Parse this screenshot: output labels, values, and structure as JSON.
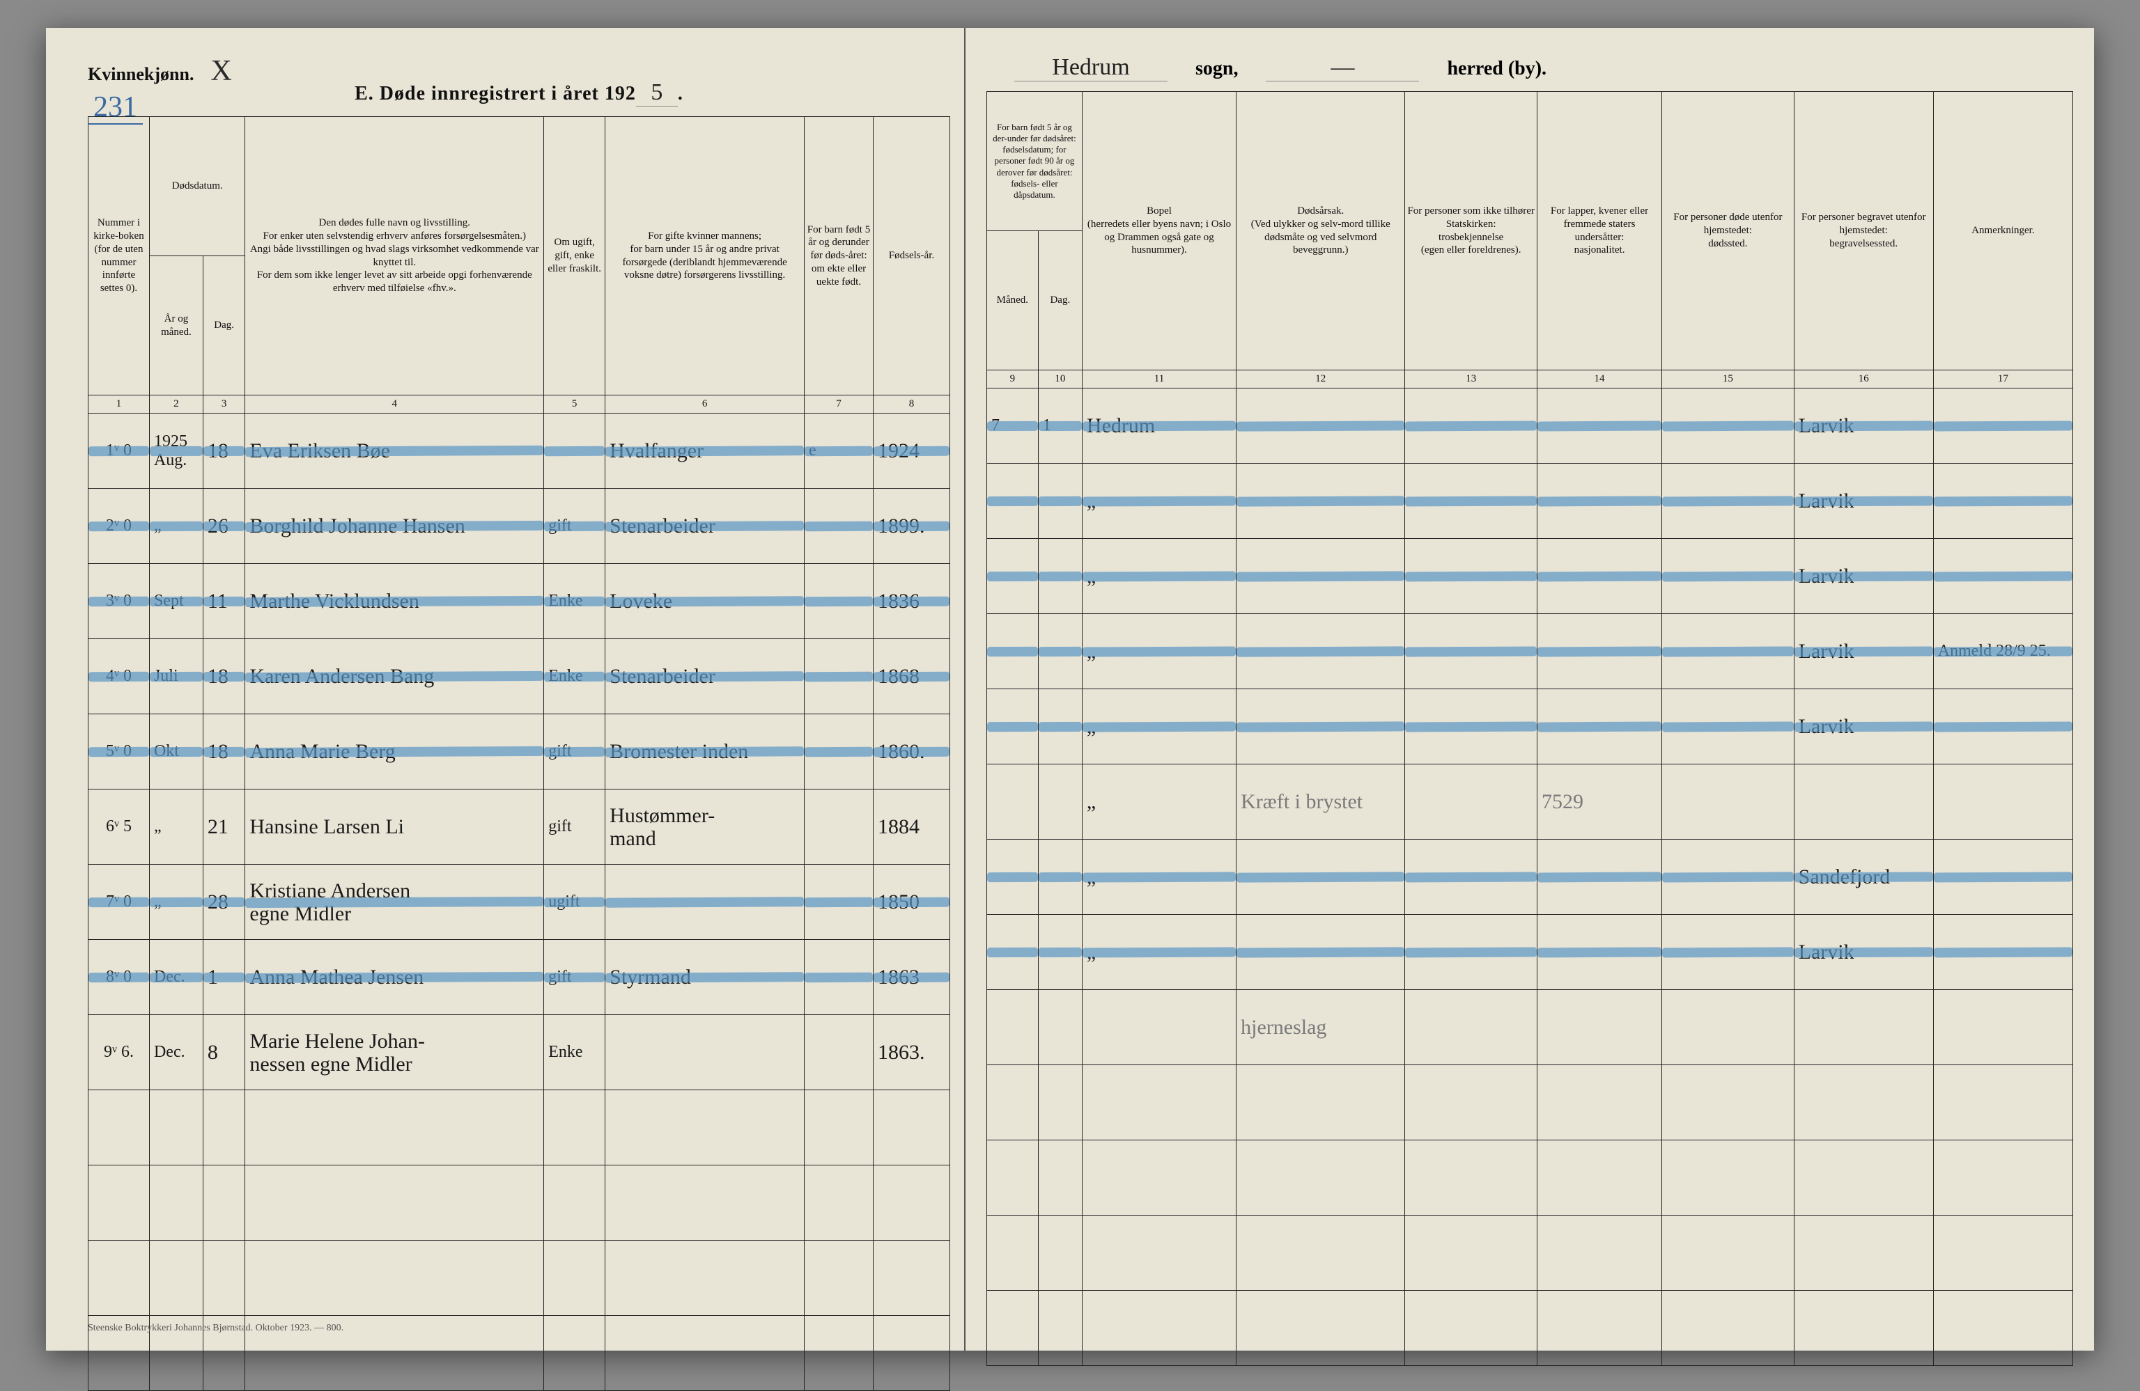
{
  "meta": {
    "gender_label": "Kvinnekjønn.",
    "gender_mark": "X",
    "page_number": "231",
    "form_title_prefix": "E.   Døde innregistrert i året 192",
    "year_digit": "5",
    "sogn_value": "Hedrum",
    "sogn_label": "sogn,",
    "herred_value": "—",
    "herred_label": "herred (by).",
    "footer": "Steenske Boktrykkeri Johannes Bjørnstad.  Oktober 1923. — 800."
  },
  "headers_left": {
    "c1": "Nummer i kirke-boken (for de uten nummer innførte settes 0).",
    "c2_top": "Dødsdatum.",
    "c2a": "År og måned.",
    "c2b": "Dag.",
    "c4": "Den dødes fulle navn og livsstilling.\nFor enker uten selvstendig erhverv anføres forsørgelsesmåten.)\nAngi både livsstillingen og hvad slags virksomhet vedkommende var knyttet til.\nFor dem som ikke lenger levet av sitt arbeide opgi forhenværende erhverv med tilføielse «fhv.».",
    "c5": "Om ugift, gift, enke eller fraskilt.",
    "c6": "For gifte kvinner mannens;\nfor barn under 15 år og andre privat forsørgede (deriblandt hjemmeværende voksne døtre) forsørgerens livsstilling.",
    "c7": "For barn født 5 år og derunder før døds-året: om ekte eller uekte født.",
    "c8": "Fødsels-år."
  },
  "headers_right": {
    "c9_top": "For barn født 5 år og der-under før dødsåret: fødselsdatum; for personer født 90 år og derover før dødsåret: fødsels- eller dåpsdatum.",
    "c9a": "Måned.",
    "c9b": "Dag.",
    "c11": "Bopel\n(herredets eller byens navn; i Oslo og Drammen også gate og husnummer).",
    "c12": "Dødsårsak.\n(Ved ulykker og selv-mord tillike dødsmåte og ved selvmord beveggrunn.)",
    "c13": "For personer som ikke tilhører Statskirken:\ntrosbekjennelse\n(egen eller foreldrenes).",
    "c14": "For lapper, kvener eller fremmede staters undersåtter:\nnasjonalitet.",
    "c15": "For personer døde utenfor hjemstedet:\ndødssted.",
    "c16": "For personer begravet utenfor hjemstedet:\nbegravelsessted.",
    "c17": "Anmerkninger."
  },
  "colnums_left": [
    "1",
    "2",
    "3",
    "4",
    "5",
    "6",
    "7",
    "8"
  ],
  "colnums_right": [
    "9",
    "10",
    "11",
    "12",
    "13",
    "14",
    "15",
    "16",
    "17"
  ],
  "rows": [
    {
      "strike": true,
      "num": "1ᵛ 0",
      "year_month": "1925\nAug.",
      "day": "18",
      "name": "Eva Eriksen   Bøe",
      "status": "",
      "provider": "Hvalfanger",
      "ekte": "e",
      "birth": "1924",
      "bmonth": "7",
      "bday": "1",
      "bopel": "Hedrum",
      "cause": "",
      "c13": "",
      "c14": "",
      "c15": "",
      "burial": "Larvik",
      "note": ""
    },
    {
      "strike": true,
      "num": "2ᵛ 0",
      "year_month": "„",
      "day": "26",
      "name": "Borghild Johanne Hansen",
      "status": "gift",
      "provider": "Stenarbeider",
      "ekte": "",
      "birth": "1899.",
      "bmonth": "",
      "bday": "",
      "bopel": "„",
      "cause": "",
      "c13": "",
      "c14": "",
      "c15": "",
      "burial": "Larvik",
      "note": ""
    },
    {
      "strike": true,
      "num": "3ᵛ 0",
      "year_month": "Sept",
      "day": "11",
      "name": "Marthe Vicklundsen",
      "status": "Enke",
      "provider": "Loveke",
      "ekte": "",
      "birth": "1836",
      "bmonth": "",
      "bday": "",
      "bopel": "„",
      "cause": "",
      "c13": "",
      "c14": "",
      "c15": "",
      "burial": "Larvik",
      "note": ""
    },
    {
      "strike": true,
      "num": "4ᵛ 0",
      "year_month": "Juli",
      "day": "18",
      "name": "Karen Andersen Bang",
      "status": "Enke",
      "provider": "Stenarbeider",
      "ekte": "",
      "birth": "1868",
      "bmonth": "",
      "bday": "",
      "bopel": "„",
      "cause": "",
      "c13": "",
      "c14": "",
      "c15": "",
      "burial": "Larvik",
      "note": "Anmeld 28/9 25."
    },
    {
      "strike": true,
      "num": "5ᵛ 0",
      "year_month": "Okt",
      "day": "18",
      "name": "Anna Marie Berg",
      "status": "gift",
      "provider": "Bromester inden",
      "ekte": "",
      "birth": "1860.",
      "bmonth": "",
      "bday": "",
      "bopel": "„",
      "cause": "",
      "c13": "",
      "c14": "",
      "c15": "",
      "burial": "Larvik",
      "note": ""
    },
    {
      "strike": false,
      "num": "6ᵛ 5",
      "year_month": "„",
      "day": "21",
      "name": "Hansine Larsen Li",
      "status": "gift",
      "provider": "Hustømmer-\nmand",
      "ekte": "",
      "birth": "1884",
      "bmonth": "",
      "bday": "",
      "bopel": "„",
      "cause": "Kræft i brystet",
      "c13": "",
      "c14": "7529",
      "c15": "",
      "burial": "",
      "note": ""
    },
    {
      "strike": true,
      "num": "7ᵛ 0",
      "year_month": "„",
      "day": "28",
      "name": "Kristiane Andersen\negne Midler",
      "status": "ugift",
      "provider": "",
      "ekte": "",
      "birth": "1850",
      "bmonth": "",
      "bday": "",
      "bopel": "„",
      "cause": "",
      "c13": "",
      "c14": "",
      "c15": "",
      "burial": "Sandefjord",
      "note": ""
    },
    {
      "strike": true,
      "num": "8ᵛ 0",
      "year_month": "Dec.",
      "day": "1",
      "name": "Anna Mathea Jensen",
      "status": "gift",
      "provider": "Styrmand",
      "ekte": "",
      "birth": "1863",
      "bmonth": "",
      "bday": "",
      "bopel": "„",
      "cause": "",
      "c13": "",
      "c14": "",
      "c15": "",
      "burial": "Larvik",
      "note": ""
    },
    {
      "strike": false,
      "num": "9ᵛ 6.",
      "year_month": "Dec.",
      "day": "8",
      "name": "Marie Helene Johan-\nnessen   egne Midler",
      "status": "Enke",
      "provider": "",
      "ekte": "",
      "birth": "1863.",
      "bmonth": "",
      "bday": "",
      "bopel": "",
      "cause": "hjerneslag",
      "c13": "",
      "c14": "",
      "c15": "",
      "burial": "",
      "note": ""
    }
  ],
  "style": {
    "paper_bg": "#e8e4d6",
    "ink": "#111111",
    "pencil": "#7a7a7a",
    "crayon": "#5a96c4",
    "blue_ink": "#3a6aa0",
    "border": "#222222"
  }
}
